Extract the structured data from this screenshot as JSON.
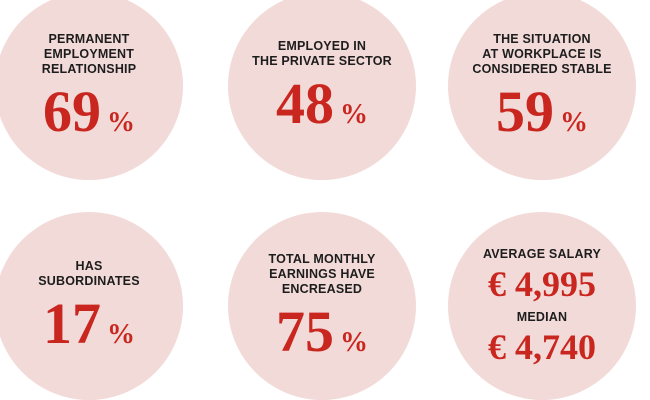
{
  "stats": [
    {
      "label": "PERMANENT\nEMPLOYMENT\nRELATIONSHIP",
      "number": "69",
      "unit": "%"
    },
    {
      "label": "EMPLOYED IN\nTHE PRIVATE SECTOR",
      "number": "48",
      "unit": "%"
    },
    {
      "label": "THE SITUATION\nAT WORKPLACE IS\nCONSIDERED STABLE",
      "number": "59",
      "unit": "%"
    },
    {
      "label": "HAS\nSUBORDINATES",
      "number": "17",
      "unit": "%"
    },
    {
      "label": "TOTAL MONTHLY\nEARNINGS HAVE\nENCREASED",
      "number": "75",
      "unit": "%"
    }
  ],
  "salary": {
    "average_label": "AVERAGE SALARY",
    "average_value": "€ 4,995",
    "median_label": "MEDIAN",
    "median_value": "€ 4,740"
  },
  "colors": {
    "circle": "#f2dad8",
    "accent": "#c8261e",
    "text": "#1d1d1d"
  }
}
